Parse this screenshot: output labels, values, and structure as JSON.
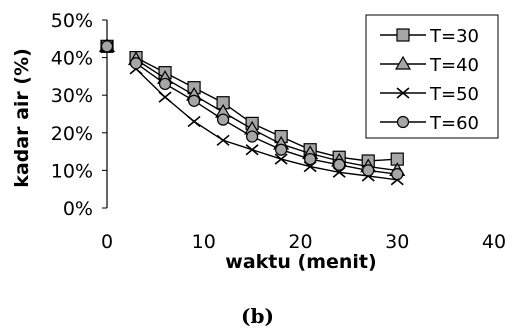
{
  "caption": "(b)",
  "colors": {
    "axis": "#000000",
    "line": "#000000",
    "marker_fill": "#a6a6a6"
  },
  "chart_data": {
    "type": "line",
    "xlabel": "waktu (menit)",
    "ylabel": "kadar air (%)",
    "xlim": [
      0,
      40
    ],
    "ylim": [
      0,
      0.5
    ],
    "x_ticks": [
      "0",
      "10",
      "20",
      "30",
      "40"
    ],
    "y_ticks": [
      "0%",
      "10%",
      "20%",
      "30%",
      "40%",
      "50%"
    ],
    "legend_position": "top-right",
    "x": [
      0,
      3,
      6,
      9,
      12,
      15,
      18,
      21,
      24,
      27,
      30
    ],
    "series": [
      {
        "name": "T=30",
        "marker": "square",
        "values": [
          0.43,
          0.4,
          0.36,
          0.32,
          0.28,
          0.225,
          0.19,
          0.155,
          0.135,
          0.125,
          0.13
        ]
      },
      {
        "name": "T=40",
        "marker": "triangle",
        "values": [
          0.43,
          0.395,
          0.345,
          0.3,
          0.255,
          0.21,
          0.17,
          0.145,
          0.125,
          0.11,
          0.1
        ]
      },
      {
        "name": "T=50",
        "marker": "x",
        "values": [
          0.43,
          0.37,
          0.295,
          0.23,
          0.18,
          0.155,
          0.13,
          0.11,
          0.095,
          0.085,
          0.075
        ]
      },
      {
        "name": "T=60",
        "marker": "circle",
        "values": [
          0.43,
          0.385,
          0.33,
          0.285,
          0.235,
          0.19,
          0.155,
          0.13,
          0.115,
          0.1,
          0.09
        ]
      }
    ]
  }
}
